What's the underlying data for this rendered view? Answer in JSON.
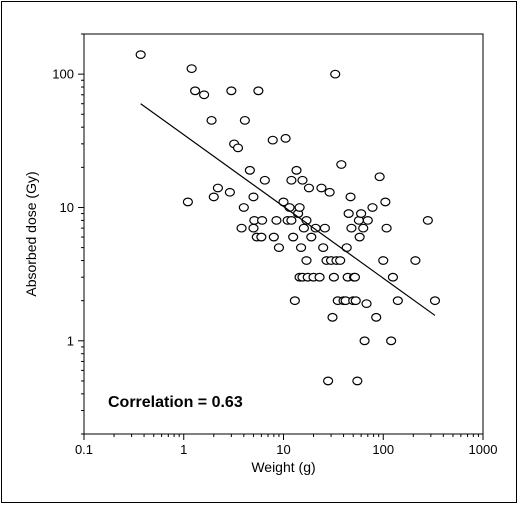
{
  "chart_data": {
    "type": "scatter",
    "title": "",
    "xlabel": "Weight (g)",
    "ylabel": "Absorbed dose (Gy)",
    "xscale": "log",
    "yscale": "log",
    "xlim": [
      0.1,
      1000
    ],
    "ylim": [
      0.2,
      200
    ],
    "xticks": [
      0.1,
      1,
      10,
      100,
      1000
    ],
    "xtick_labels": [
      "0.1",
      "1",
      "10",
      "100",
      "1000"
    ],
    "yticks": [
      1,
      10,
      100
    ],
    "ytick_labels": [
      "1",
      "10",
      "100"
    ],
    "grid": false,
    "legend": "none",
    "annotation": "Correlation = 0.63",
    "marker": "open-circle",
    "points": [
      [
        0.37,
        140
      ],
      [
        1.1,
        11
      ],
      [
        1.2,
        110
      ],
      [
        1.3,
        75
      ],
      [
        1.6,
        70
      ],
      [
        1.9,
        45
      ],
      [
        2.0,
        12
      ],
      [
        2.2,
        14
      ],
      [
        2.9,
        13
      ],
      [
        3.0,
        75
      ],
      [
        3.2,
        30
      ],
      [
        3.5,
        28
      ],
      [
        3.8,
        7
      ],
      [
        4.0,
        10
      ],
      [
        4.1,
        45
      ],
      [
        4.6,
        19
      ],
      [
        5.0,
        7
      ],
      [
        5.0,
        12
      ],
      [
        5.1,
        8
      ],
      [
        5.4,
        6
      ],
      [
        5.6,
        75
      ],
      [
        6.0,
        6
      ],
      [
        6.1,
        8
      ],
      [
        6.5,
        16
      ],
      [
        7.8,
        32
      ],
      [
        8.0,
        6
      ],
      [
        8.5,
        8
      ],
      [
        9.0,
        5
      ],
      [
        10.0,
        11
      ],
      [
        10.5,
        33
      ],
      [
        11.0,
        8
      ],
      [
        11.5,
        10
      ],
      [
        12.0,
        16
      ],
      [
        12.0,
        8
      ],
      [
        12.5,
        6
      ],
      [
        13.0,
        2
      ],
      [
        13.5,
        19
      ],
      [
        14.0,
        9
      ],
      [
        14.5,
        10
      ],
      [
        14.5,
        3
      ],
      [
        15.0,
        5
      ],
      [
        15.5,
        16
      ],
      [
        15.5,
        3
      ],
      [
        16.0,
        7
      ],
      [
        17.0,
        4
      ],
      [
        17.0,
        8
      ],
      [
        17.5,
        3
      ],
      [
        18.0,
        14
      ],
      [
        19.0,
        6
      ],
      [
        20.0,
        3
      ],
      [
        21.0,
        7
      ],
      [
        23.0,
        3
      ],
      [
        24.0,
        14
      ],
      [
        25.0,
        5
      ],
      [
        26.0,
        7
      ],
      [
        27.0,
        4
      ],
      [
        28.0,
        0.5
      ],
      [
        29.0,
        13
      ],
      [
        30.0,
        4
      ],
      [
        31.0,
        1.5
      ],
      [
        32.0,
        3
      ],
      [
        33.0,
        100
      ],
      [
        34.0,
        4
      ],
      [
        35.0,
        2
      ],
      [
        37.0,
        4
      ],
      [
        38.0,
        21
      ],
      [
        40.0,
        2
      ],
      [
        42.0,
        2
      ],
      [
        43.0,
        5
      ],
      [
        44.0,
        3
      ],
      [
        45.0,
        9
      ],
      [
        47.0,
        12
      ],
      [
        48.0,
        7
      ],
      [
        50.0,
        2
      ],
      [
        51.0,
        3
      ],
      [
        52.0,
        3
      ],
      [
        53.0,
        2
      ],
      [
        55.0,
        0.5
      ],
      [
        57.0,
        8
      ],
      [
        58.0,
        6
      ],
      [
        60.0,
        9
      ],
      [
        63.0,
        7
      ],
      [
        65.0,
        1
      ],
      [
        68.0,
        1.9
      ],
      [
        70.0,
        8
      ],
      [
        78.0,
        10
      ],
      [
        85.0,
        1.5
      ],
      [
        92.0,
        17
      ],
      [
        100.0,
        4
      ],
      [
        105.0,
        11
      ],
      [
        108.0,
        7
      ],
      [
        120.0,
        1
      ],
      [
        125.0,
        3
      ],
      [
        140.0,
        2
      ],
      [
        210.0,
        4
      ],
      [
        280.0,
        8
      ],
      [
        330.0,
        2
      ]
    ],
    "trendline": {
      "x": [
        0.37,
        330
      ],
      "y": [
        60,
        1.55
      ]
    }
  }
}
